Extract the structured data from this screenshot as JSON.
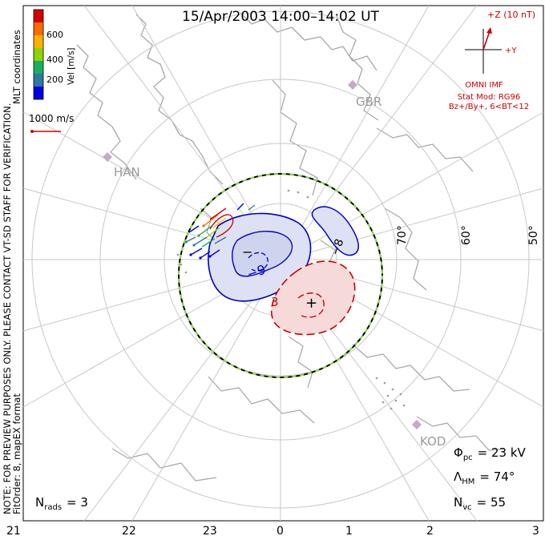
{
  "title": "15/Apr/2003 14:00–14:02 UT",
  "coord_label": "MLT coordinates",
  "colorbar": {
    "label": "Vel [m/s]",
    "ticks": [
      "600",
      "400",
      "200"
    ],
    "colors": [
      "#d40000",
      "#ff6a00",
      "#ffb000",
      "#8fd400",
      "#18b060",
      "#2c7a9e",
      "#0000e0"
    ]
  },
  "vector_scale": "1000 m/s",
  "note": "NOTE: FOR PREVIEW PURPOSES ONLY. PLEASE CONTACT VT-SD STAFF FOR VERIFICATION.",
  "fit_order": "FitOrder: 8, mapEX format",
  "imf": {
    "z_label": "+Z (10 nT)",
    "y_label": "+Y",
    "omni_label": "OMNI IMF",
    "stat_mod": "Stat Mod: RG96",
    "condition": "Bz+/By+, 6<BT<12"
  },
  "stations": [
    "GBR",
    "HAN",
    "KOD"
  ],
  "lat_labels": [
    "70°",
    "60°",
    "50°"
  ],
  "mlt_labels": [
    "21",
    "22",
    "23",
    "0",
    "1",
    "2",
    "3"
  ],
  "contours": {
    "min_label": "−",
    "min_value": "−9",
    "max_label": "+",
    "max_value": "3",
    "dawn_value": "−8"
  },
  "stats": {
    "phi_symbol": "Φ",
    "phi_sub": "pc",
    "phi_value": "= 23 kV",
    "lambda_symbol": "Λ",
    "lambda_sub": "HM",
    "lambda_value": "= 74°",
    "nvc_symbol": "N",
    "nvc_sub": "vc",
    "nvc_value": "= 55",
    "nrads_symbol": "N",
    "nrads_sub": "rads",
    "nrads_value": "= 3"
  },
  "colors": {
    "land": "#a8a8a8",
    "grid": "#c8c8c8",
    "negative_fill": "#dde1f3",
    "positive_fill": "#f6dada",
    "negative_line": "#0000cc",
    "positive_line": "#cc0000",
    "hmb_dash_a": "#000000",
    "hmb_dash_b": "#8ee04a",
    "station": "#c7a8c7"
  }
}
